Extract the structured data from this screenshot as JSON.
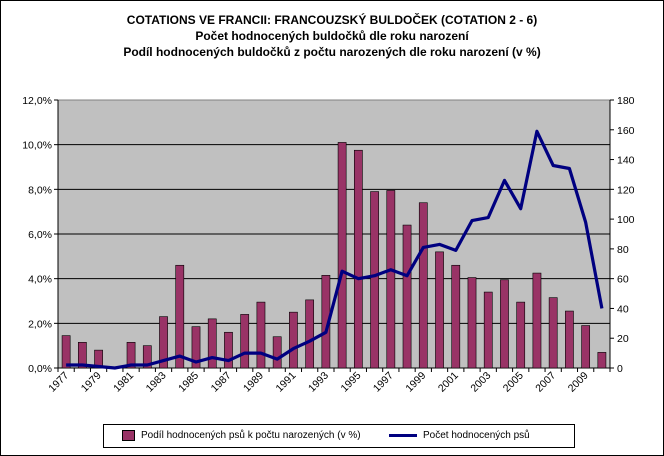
{
  "chart_data": {
    "type": "bar+line",
    "title": "COTATIONS VE FRANCII: FRANCOUZSKÝ  BULDOČEK  (COTATION  2 - 6)",
    "subtitle_1": "Počet hodnocených buldočků dle roku narození",
    "subtitle_2": "Podíl hodnocených  buldočků  z počtu narozených dle roku narození (v %)",
    "categories": [
      1977,
      1978,
      1979,
      1980,
      1981,
      1982,
      1983,
      1984,
      1985,
      1986,
      1987,
      1988,
      1989,
      1990,
      1991,
      1992,
      1993,
      1994,
      1995,
      1996,
      1997,
      1998,
      1999,
      2000,
      2001,
      2002,
      2003,
      2004,
      2005,
      2006,
      2007,
      2008,
      2009,
      2010
    ],
    "x_tick_labels": [
      "1977",
      "1979",
      "1981",
      "1983",
      "1985",
      "1987",
      "1989",
      "1991",
      "1993",
      "1995",
      "1997",
      "1999",
      "2001",
      "2003",
      "2005",
      "2007",
      "2009"
    ],
    "series": [
      {
        "name": "Podíl hodnocených psů k počtu narozených (v %)",
        "type": "bar",
        "axis": "left",
        "color": "#993366",
        "values": [
          1.45,
          1.15,
          0.8,
          0.0,
          1.15,
          1.0,
          2.3,
          4.6,
          1.85,
          2.2,
          1.6,
          2.4,
          2.95,
          1.4,
          2.5,
          3.05,
          4.15,
          10.1,
          9.75,
          7.9,
          7.95,
          6.4,
          7.4,
          5.2,
          4.6,
          4.05,
          3.4,
          3.95,
          2.95,
          4.25,
          3.15,
          2.55,
          1.9,
          0.7
        ]
      },
      {
        "name": "Počet hodnocených psů",
        "type": "line",
        "axis": "right",
        "color": "#000080",
        "values": [
          2,
          2,
          1,
          0,
          2,
          2,
          5,
          8,
          4,
          7,
          5,
          10,
          10,
          6,
          13,
          18,
          24,
          65,
          60,
          62,
          66,
          62,
          81,
          83,
          79,
          99,
          101,
          126,
          107,
          159,
          136,
          134,
          98,
          40
        ]
      }
    ],
    "y_left": {
      "ticks": [
        "0,0%",
        "2,0%",
        "4,0%",
        "6,0%",
        "8,0%",
        "10,0%",
        "12,0%"
      ],
      "min": 0,
      "max": 12
    },
    "y_right": {
      "ticks": [
        "0",
        "20",
        "40",
        "60",
        "80",
        "100",
        "120",
        "140",
        "160",
        "180"
      ],
      "min": 0,
      "max": 180
    },
    "plot_background": "#c0c0c0",
    "grid": true,
    "legend": "bottom"
  }
}
